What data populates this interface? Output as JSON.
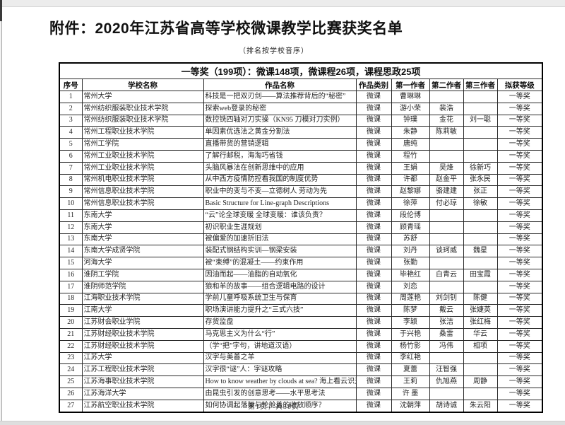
{
  "page": {
    "title": "附件：2020年江苏省高等学校微课教学比赛获奖名单",
    "subtitle": "（排名按学校音序）",
    "footer": "第1页，共38页"
  },
  "table": {
    "section_header": "一等奖（199项）：微课148项，微课程26项，课程思政25项",
    "columns": [
      "序号",
      "学校名称",
      "作品名称",
      "作品类别",
      "第一作者",
      "第二作者",
      "第三作者",
      "拟获等级"
    ],
    "rows": [
      [
        "1",
        "常州大学",
        "科技是一把双刃剑——算法推荐背后的“秘密”",
        "微课",
        "曹琳琳",
        "",
        "",
        "一等奖"
      ],
      [
        "2",
        "常州纺织服装职业技术学院",
        "探索web登录的秘密",
        "微课",
        "游小荣",
        "裴浩",
        "",
        "一等奖"
      ],
      [
        "3",
        "常州纺织服装职业技术学院",
        "数控铣四轴对刀实操（KN95 刀模对刀实例）",
        "微课",
        "钟璞",
        "金花",
        "刘一聪",
        "一等奖"
      ],
      [
        "4",
        "常州工程职业技术学院",
        "单因素优选法之黄金分割法",
        "微课",
        "朱静",
        "陈莉敏",
        "",
        "一等奖"
      ],
      [
        "5",
        "常州工学院",
        "直播带货的营销逻辑",
        "微课",
        "唐纯",
        "",
        "",
        "一等奖"
      ],
      [
        "6",
        "常州工业职业技术学院",
        "了解行邮税，海淘巧省钱",
        "微课",
        "程竹",
        "",
        "",
        "一等奖"
      ],
      [
        "7",
        "常州工业职业技术学院",
        "头脑风暴法在创新思维中的应用",
        "微课",
        "王娟",
        "吴烽",
        "徐新巧",
        "一等奖"
      ],
      [
        "8",
        "常州机电职业技术学院",
        "从中西方疫情防控看我国的制度优势",
        "微课",
        "许都",
        "赵金平",
        "张永民",
        "一等奖"
      ],
      [
        "9",
        "常州信息职业技术学院",
        "职业中的变与不变—立德树人 劳动为先",
        "微课",
        "赵黎娜",
        "骆建建",
        "张正",
        "一等奖"
      ],
      [
        "10",
        "常州信息职业技术学院",
        "Basic Structure for Line-graph Descriptions",
        "微课",
        "徐萍",
        "付必琼",
        "徐敏",
        "一等奖"
      ],
      [
        "11",
        "东南大学",
        "“云”论全球变暖 全球变暖：谁该负责？",
        "微课",
        "段伦博",
        "",
        "",
        "一等奖"
      ],
      [
        "12",
        "东南大学",
        "初识职业生涯规划",
        "微课",
        "顾青瑶",
        "",
        "",
        "一等奖"
      ],
      [
        "13",
        "东南大学",
        "被偏爱的加速折旧法",
        "微课",
        "苏舒",
        "",
        "",
        "一等奖"
      ],
      [
        "14",
        "东南大学成贤学院",
        "装配式钢结构实训—钢梁安装",
        "微课",
        "刘丹",
        "谈珂威",
        "魏星",
        "一等奖"
      ],
      [
        "15",
        "河海大学",
        "被“束缚”的混凝土——约束作用",
        "微课",
        "张勤",
        "",
        "",
        "一等奖"
      ],
      [
        "16",
        "淮阴工学院",
        "因油而起——油脂的自动氧化",
        "微课",
        "毕艳红",
        "白青云",
        "田宝霞",
        "一等奖"
      ],
      [
        "17",
        "淮阴师范学院",
        "狼和羊的故事——组合逻辑电路的设计",
        "微课",
        "刘恋",
        "",
        "",
        "一等奖"
      ],
      [
        "18",
        "江海职业技术学院",
        "学前儿童呼吸系统卫生与保育",
        "微课",
        "周莲艳",
        "刘剑钊",
        "陈健",
        "一等奖"
      ],
      [
        "19",
        "江南大学",
        "职场演讲能力提升之“三式六技”",
        "微课",
        "陈梦",
        "戴云",
        "张婕英",
        "一等奖"
      ],
      [
        "20",
        "江苏财会职业学院",
        "存货监盘",
        "微课",
        "李颖",
        "张洁",
        "张红梅",
        "一等奖"
      ],
      [
        "21",
        "江苏财经职业技术学院",
        "马克思主义为什么“行”",
        "微课",
        "于兴艳",
        "桑雷",
        "华云",
        "一等奖"
      ],
      [
        "22",
        "江苏财经职业技术学院",
        "（学“把”字句，讲地道汉语）",
        "微课",
        "杨竹影",
        "冯伟",
        "相项",
        "一等奖"
      ],
      [
        "23",
        "江苏大学",
        "汉字与美善之羊",
        "微课",
        "李红艳",
        "",
        "",
        "一等奖"
      ],
      [
        "24",
        "江苏工程职业技术学院",
        "汉字很“谜”人：字谜攻略",
        "微课",
        "夏蕾",
        "汪智强",
        "",
        "一等奖"
      ],
      [
        "25",
        "江苏海事职业技术学院",
        "How to know weather by clouds at sea? 海上看云识天气",
        "微课",
        "王莉",
        "仇旭燕",
        "周静",
        "一等奖"
      ],
      [
        "26",
        "江苏海洋大学",
        "由昆虫引发的创意思考——水平思考法",
        "微课",
        "许 墨",
        "",
        "",
        "一等奖"
      ],
      [
        "27",
        "江苏航空职业技术学院",
        "如何协调起落架与轮舱盖的收放顺序？",
        "微课",
        "沈朝萍",
        "胡诗诚",
        "朱云阳",
        "一等奖"
      ]
    ]
  }
}
